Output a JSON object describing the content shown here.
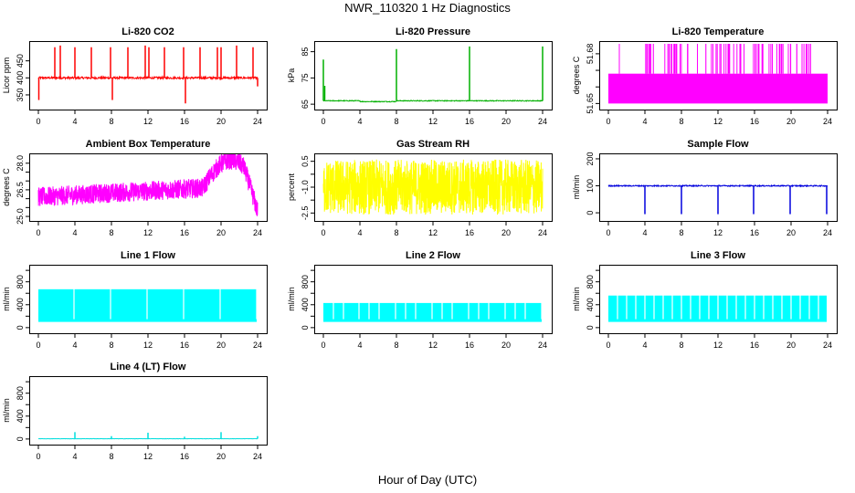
{
  "page": {
    "title": "NWR_110320  1 Hz Diagnostics",
    "xlabel": "Hour of Day (UTC)"
  },
  "chart_data": [
    {
      "type": "line",
      "title": "Li-820 CO2",
      "ylabel": "Licor ppm",
      "color": "#ff0000",
      "xlim": [
        0,
        24
      ],
      "ylim": [
        315,
        500
      ],
      "xticks": [
        0,
        4,
        8,
        12,
        16,
        20,
        24
      ],
      "yticks": [
        350,
        400,
        450
      ],
      "ytick_labels": [
        "350",
        "400",
        "450"
      ],
      "pattern": "spikes",
      "base": 400,
      "noise": 3,
      "spikes": [
        [
          0.05,
          335
        ],
        [
          1.8,
          490
        ],
        [
          2.4,
          495
        ],
        [
          4.0,
          490
        ],
        [
          5.8,
          490
        ],
        [
          7.9,
          490
        ],
        [
          8.1,
          335
        ],
        [
          9.8,
          490
        ],
        [
          11.7,
          495
        ],
        [
          12.1,
          490
        ],
        [
          13.8,
          490
        ],
        [
          15.9,
          490
        ],
        [
          16.1,
          325
        ],
        [
          17.7,
          490
        ],
        [
          19.6,
          490
        ],
        [
          20.0,
          490
        ],
        [
          21.7,
          495
        ],
        [
          23.5,
          490
        ],
        [
          24.0,
          375
        ]
      ]
    },
    {
      "type": "line",
      "title": "Li-820 Pressure",
      "ylabel": "kPa",
      "color": "#00b000",
      "xlim": [
        0,
        24
      ],
      "ylim": [
        64,
        88
      ],
      "xticks": [
        0,
        4,
        8,
        12,
        16,
        20,
        24
      ],
      "yticks": [
        65,
        75,
        85
      ],
      "ytick_labels": [
        "65",
        "75",
        "85"
      ],
      "pattern": "pressure",
      "base": 66.3,
      "noise": 0.15,
      "spikes": [
        [
          0.0,
          82
        ],
        [
          0.15,
          72
        ],
        [
          8.0,
          86
        ],
        [
          16.0,
          87
        ],
        [
          24.0,
          87
        ]
      ]
    },
    {
      "type": "line",
      "title": "Li-820 Temperature",
      "ylabel": "degrees C",
      "color": "#ff00ff",
      "xlim": [
        0,
        24
      ],
      "ylim": [
        51.648,
        51.686
      ],
      "xticks": [
        0,
        4,
        8,
        12,
        16,
        20,
        24
      ],
      "yticks": [
        51.65,
        51.66,
        51.67,
        51.68
      ],
      "ytick_labels": [
        "51.65",
        "",
        "",
        "51.68"
      ],
      "pattern": "band",
      "band": [
        51.65,
        51.668
      ],
      "spike_top": 51.686,
      "spike_range": [
        3.8,
        23.2
      ]
    },
    {
      "type": "line",
      "title": "Ambient Box Temperature",
      "ylabel": "degrees C",
      "color": "#ff00ff",
      "xlim": [
        0,
        24
      ],
      "ylim": [
        24.9,
        28.4
      ],
      "xticks": [
        0,
        4,
        8,
        12,
        16,
        20,
        24
      ],
      "yticks": [
        25.0,
        25.5,
        26.0,
        26.5,
        27.0,
        27.5,
        28.0
      ],
      "ytick_labels": [
        "25.0",
        "",
        "",
        "26.5",
        "",
        "",
        "28.0"
      ],
      "pattern": "ambient"
    },
    {
      "type": "line",
      "title": "Gas Stream RH",
      "ylabel": "percent",
      "color": "#ffff00",
      "xlim": [
        0,
        24
      ],
      "ylim": [
        -2.8,
        0.8
      ],
      "xticks": [
        0,
        4,
        8,
        12,
        16,
        20,
        24
      ],
      "yticks": [
        -2.5,
        -1.75,
        -1.0,
        -0.25,
        0.5
      ],
      "ytick_labels": [
        "-2.5",
        "",
        "-1.0",
        "",
        "0.5"
      ],
      "pattern": "noiseband",
      "center": -1.0,
      "amp": 1.6
    },
    {
      "type": "line",
      "title": "Sample Flow",
      "ylabel": "ml/min",
      "color": "#0000dd",
      "xlim": [
        0,
        24
      ],
      "ylim": [
        -20,
        210
      ],
      "xticks": [
        0,
        4,
        8,
        12,
        16,
        20,
        24
      ],
      "yticks": [
        0,
        100,
        200
      ],
      "ytick_labels": [
        "0",
        "100",
        "200"
      ],
      "pattern": "spikes",
      "base": 100,
      "noise": 2,
      "spikes": [
        [
          4.0,
          -5
        ],
        [
          8.0,
          -5
        ],
        [
          12.0,
          -5
        ],
        [
          15.9,
          -5
        ],
        [
          19.9,
          -5
        ],
        [
          23.9,
          -5
        ]
      ]
    },
    {
      "type": "line",
      "title": "Line 1 Flow",
      "ylabel": "ml/min",
      "color": "#00ffff",
      "xlim": [
        0,
        24
      ],
      "ylim": [
        -50,
        1050
      ],
      "xticks": [
        0,
        4,
        8,
        12,
        16,
        20,
        24
      ],
      "yticks": [
        0,
        200,
        400,
        600,
        800,
        1000
      ],
      "ytick_labels": [
        "0",
        "",
        "400",
        "",
        "800",
        ""
      ],
      "pattern": "block",
      "low": 100,
      "high": 670,
      "gaps": [
        3.9,
        7.9,
        11.9,
        15.9,
        19.9,
        23.9
      ]
    },
    {
      "type": "line",
      "title": "Line 2 Flow",
      "ylabel": "ml/min",
      "color": "#00ffff",
      "xlim": [
        0,
        24
      ],
      "ylim": [
        -50,
        1050
      ],
      "xticks": [
        0,
        4,
        8,
        12,
        16,
        20,
        24
      ],
      "yticks": [
        0,
        200,
        400,
        600,
        800,
        1000
      ],
      "ytick_labels": [
        "0",
        "",
        "400",
        "",
        "800",
        ""
      ],
      "pattern": "block",
      "low": 100,
      "high": 430,
      "gaps": [
        1.1,
        2.2,
        3.9,
        5.0,
        6.1,
        7.9,
        9.0,
        10.1,
        11.9,
        13.0,
        14.1,
        15.9,
        17.0,
        18.1,
        19.9,
        21.0,
        22.1,
        23.9
      ]
    },
    {
      "type": "line",
      "title": "Line 3 Flow",
      "ylabel": "ml/min",
      "color": "#00ffff",
      "xlim": [
        0,
        24
      ],
      "ylim": [
        -50,
        1050
      ],
      "xticks": [
        0,
        4,
        8,
        12,
        16,
        20,
        24
      ],
      "yticks": [
        0,
        200,
        400,
        600,
        800,
        1000
      ],
      "ytick_labels": [
        "0",
        "",
        "400",
        "",
        "800",
        ""
      ],
      "pattern": "block",
      "low": 100,
      "high": 560,
      "gaps": [
        1.0,
        2.0,
        3.0,
        4.0,
        5.0,
        6.0,
        7.0,
        8.0,
        9.0,
        10.0,
        11.0,
        12.0,
        13.0,
        14.0,
        15.0,
        16.0,
        17.0,
        18.0,
        19.0,
        20.0,
        21.0,
        22.0,
        23.0
      ]
    },
    {
      "type": "line",
      "title": "Line 4 (LT) Flow",
      "ylabel": "ml/min",
      "color": "#00dddd",
      "xlim": [
        0,
        24
      ],
      "ylim": [
        -50,
        1050
      ],
      "xticks": [
        0,
        4,
        8,
        12,
        16,
        20,
        24
      ],
      "yticks": [
        0,
        200,
        400,
        600,
        800,
        1000
      ],
      "ytick_labels": [
        "0",
        "",
        "400",
        "",
        "800",
        ""
      ],
      "pattern": "spikes",
      "base": 5,
      "noise": 2,
      "spikes": [
        [
          4.0,
          120
        ],
        [
          8.0,
          50
        ],
        [
          12.0,
          110
        ],
        [
          16.0,
          40
        ],
        [
          20.0,
          120
        ],
        [
          24.0,
          50
        ]
      ]
    }
  ]
}
